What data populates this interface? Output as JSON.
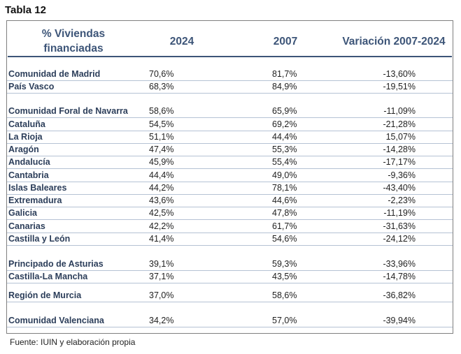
{
  "title": "Tabla 12",
  "table": {
    "headers": {
      "region": "% Viviendas financiadas",
      "y2024": "2024",
      "y2007": "2007",
      "variation": "Variación 2007-2024"
    },
    "rows": [
      {
        "region": "Comunidad de Madrid",
        "y2024": "70,6%",
        "y2007": "81,7%",
        "variation": "-13,60%"
      },
      {
        "region": "País Vasco",
        "y2024": "68,3%",
        "y2007": "84,9%",
        "variation": "-19,51%"
      },
      {
        "region": "Comunidad Foral de Navarra",
        "y2024": "58,6%",
        "y2007": "65,9%",
        "variation": "-11,09%"
      },
      {
        "region": "Cataluña",
        "y2024": "54,5%",
        "y2007": "69,2%",
        "variation": "-21,28%"
      },
      {
        "region": "La Rioja",
        "y2024": "51,1%",
        "y2007": "44,4%",
        "variation": "15,07%"
      },
      {
        "region": "Aragón",
        "y2024": "47,4%",
        "y2007": "55,3%",
        "variation": "-14,28%"
      },
      {
        "region": "Andalucía",
        "y2024": "45,9%",
        "y2007": "55,4%",
        "variation": "-17,17%"
      },
      {
        "region": "Cantabria",
        "y2024": "44,4%",
        "y2007": "49,0%",
        "variation": "-9,36%"
      },
      {
        "region": "Islas Baleares",
        "y2024": "44,2%",
        "y2007": "78,1%",
        "variation": "-43,40%"
      },
      {
        "region": "Extremadura",
        "y2024": "43,6%",
        "y2007": "44,6%",
        "variation": "-2,23%"
      },
      {
        "region": "Galicia",
        "y2024": "42,5%",
        "y2007": "47,8%",
        "variation": "-11,19%"
      },
      {
        "region": "Canarias",
        "y2024": "42,2%",
        "y2007": "61,7%",
        "variation": "-31,63%"
      },
      {
        "region": "Castilla y León",
        "y2024": "41,4%",
        "y2007": "54,6%",
        "variation": "-24,12%"
      },
      {
        "region": "Principado de Asturias",
        "y2024": "39,1%",
        "y2007": "59,3%",
        "variation": "-33,96%"
      },
      {
        "region": "Castilla-La Mancha",
        "y2024": "37,1%",
        "y2007": "43,5%",
        "variation": "-14,78%"
      },
      {
        "region": "Región de Murcia",
        "y2024": "37,0%",
        "y2007": "58,6%",
        "variation": "-36,82%"
      },
      {
        "region": "Comunidad Valenciana",
        "y2024": "34,2%",
        "y2007": "57,0%",
        "variation": "-39,94%"
      }
    ]
  },
  "source": "Fuente: IUIN y elaboración propia"
}
